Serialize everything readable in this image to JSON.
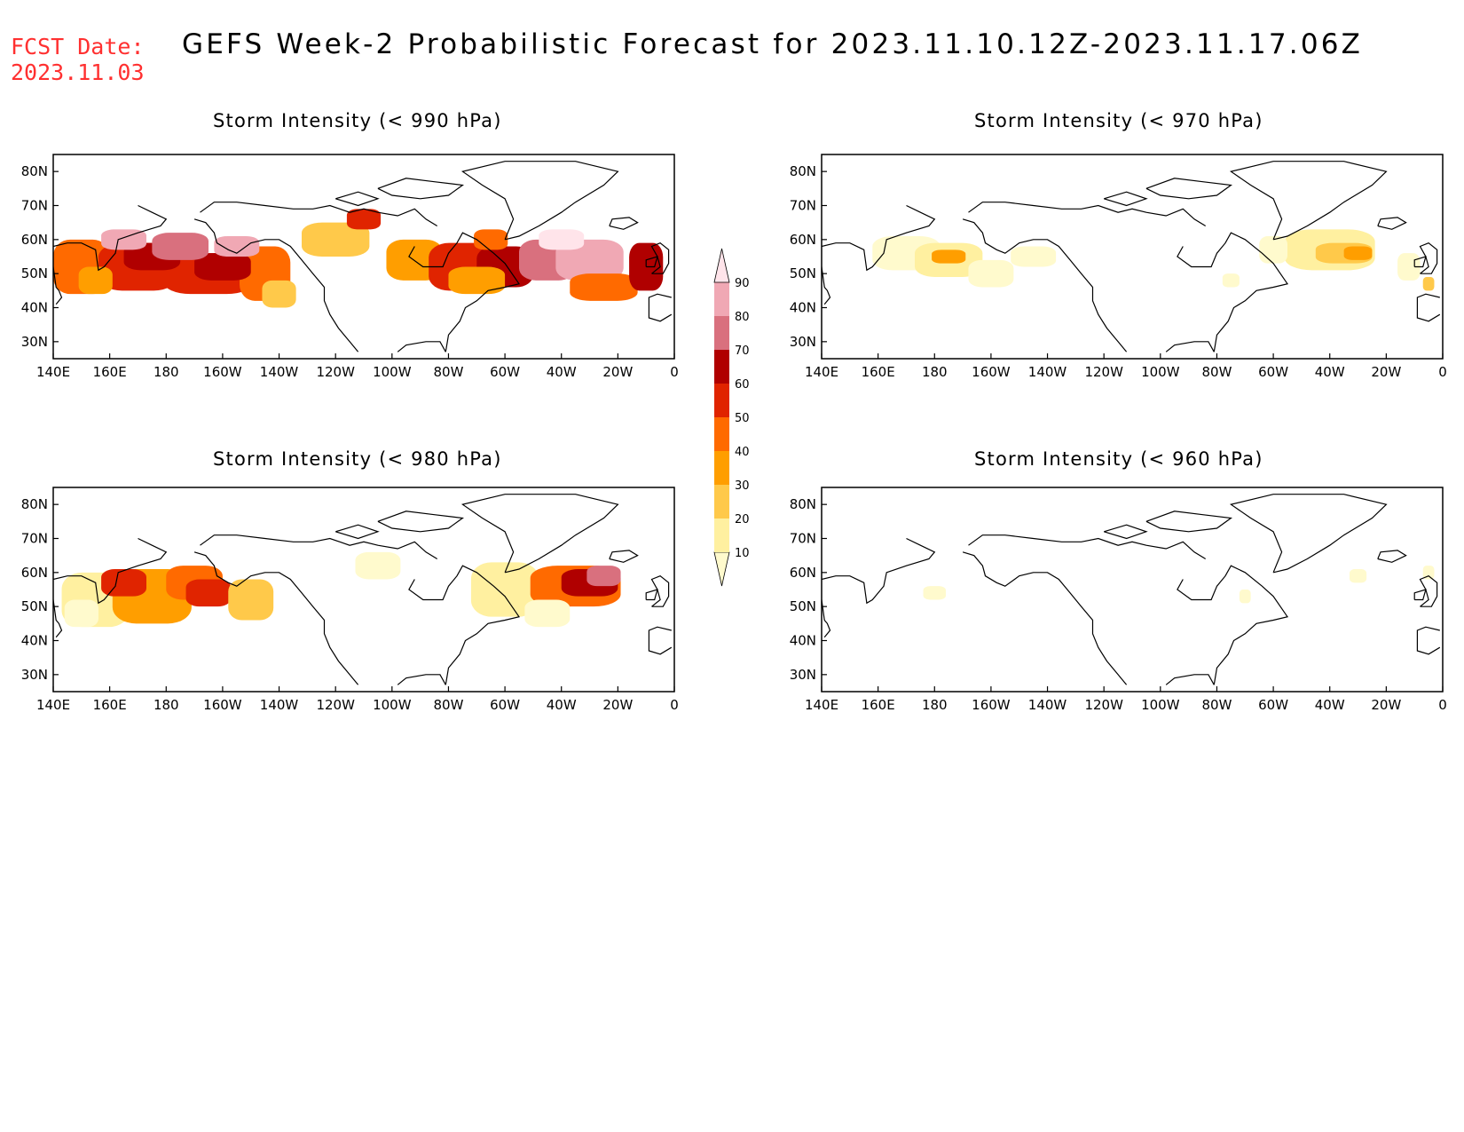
{
  "header": {
    "fcst_label": "FCST Date:",
    "fcst_date": "2023.11.03",
    "title": "GEFS Week-2 Probabilistic Forecast for 2023.11.10.12Z-2023.11.17.06Z"
  },
  "axes": {
    "lon_labels": [
      "140E",
      "160E",
      "180",
      "160W",
      "140W",
      "120W",
      "100W",
      "80W",
      "60W",
      "40W",
      "20W",
      "0"
    ],
    "lat_labels": [
      "80N",
      "70N",
      "60N",
      "50N",
      "40N",
      "30N"
    ]
  },
  "colorbar": {
    "levels": [
      "10",
      "20",
      "30",
      "40",
      "50",
      "60",
      "70",
      "80",
      "90"
    ],
    "colors": [
      "#fffacd",
      "#fff0a0",
      "#ffc94a",
      "#ff9e00",
      "#ff6a00",
      "#e02400",
      "#b00000",
      "#d9707e",
      "#f0a8b4",
      "#ffe4ea"
    ]
  },
  "panels": [
    {
      "id": "p990",
      "title": "Storm Intensity (< 990 hPa)"
    },
    {
      "id": "p970",
      "title": "Storm Intensity (< 970 hPa)"
    },
    {
      "id": "p980",
      "title": "Storm Intensity (< 980 hPa)"
    },
    {
      "id": "p960",
      "title": "Storm Intensity (< 960 hPa)"
    }
  ]
}
